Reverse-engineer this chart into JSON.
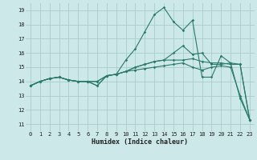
{
  "title": "",
  "xlabel": "Humidex (Indice chaleur)",
  "bg_color": "#cce8e8",
  "grid_color": "#aacccc",
  "line_color": "#2a7a6a",
  "xlim": [
    -0.5,
    23.5
  ],
  "ylim": [
    10.5,
    19.5
  ],
  "xticks": [
    0,
    1,
    2,
    3,
    4,
    5,
    6,
    7,
    8,
    9,
    10,
    11,
    12,
    13,
    14,
    15,
    16,
    17,
    18,
    19,
    20,
    21,
    22,
    23
  ],
  "yticks": [
    11,
    12,
    13,
    14,
    15,
    16,
    17,
    18,
    19
  ],
  "line1_x": [
    0,
    1,
    2,
    3,
    4,
    5,
    6,
    7,
    8,
    9,
    10,
    11,
    12,
    13,
    14,
    15,
    16,
    17,
    18,
    19,
    20,
    21,
    22,
    23
  ],
  "line1_y": [
    13.7,
    14.0,
    14.2,
    14.3,
    14.1,
    14.0,
    14.0,
    13.7,
    14.4,
    14.5,
    14.7,
    15.0,
    15.2,
    15.4,
    15.5,
    16.0,
    16.5,
    15.9,
    16.0,
    15.2,
    15.2,
    15.3,
    12.8,
    11.3
  ],
  "line2_x": [
    0,
    1,
    2,
    3,
    4,
    5,
    6,
    7,
    8,
    9,
    10,
    11,
    12,
    13,
    14,
    15,
    16,
    17,
    18,
    19,
    20,
    21,
    22,
    23
  ],
  "line2_y": [
    13.7,
    14.0,
    14.2,
    14.3,
    14.1,
    14.0,
    14.0,
    14.0,
    14.4,
    14.5,
    15.5,
    16.3,
    17.5,
    18.7,
    19.2,
    18.2,
    17.6,
    18.3,
    14.3,
    14.3,
    15.8,
    15.3,
    15.2,
    11.3
  ],
  "line3_x": [
    0,
    1,
    2,
    3,
    4,
    5,
    6,
    7,
    8,
    9,
    10,
    11,
    12,
    13,
    14,
    15,
    16,
    17,
    18,
    19,
    20,
    21,
    22,
    23
  ],
  "line3_y": [
    13.7,
    14.0,
    14.2,
    14.3,
    14.1,
    14.0,
    14.0,
    14.0,
    14.4,
    14.5,
    14.7,
    15.0,
    15.2,
    15.4,
    15.5,
    15.5,
    15.5,
    15.6,
    15.4,
    15.3,
    15.3,
    15.2,
    15.2,
    11.3
  ],
  "line4_x": [
    0,
    1,
    2,
    3,
    4,
    5,
    6,
    7,
    8,
    9,
    10,
    11,
    12,
    13,
    14,
    15,
    16,
    17,
    18,
    19,
    20,
    21,
    22,
    23
  ],
  "line4_y": [
    13.7,
    14.0,
    14.2,
    14.3,
    14.1,
    14.0,
    14.0,
    13.7,
    14.4,
    14.5,
    14.7,
    14.8,
    14.9,
    15.0,
    15.1,
    15.2,
    15.3,
    15.0,
    14.8,
    15.0,
    15.1,
    15.0,
    13.0,
    11.3
  ]
}
